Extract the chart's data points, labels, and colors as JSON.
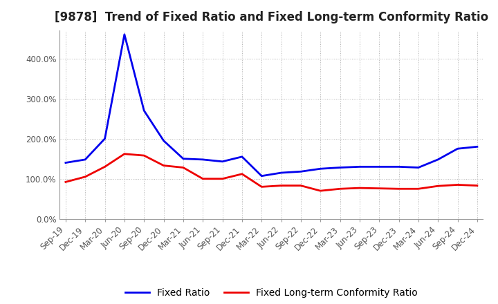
{
  "title": "[9878]  Trend of Fixed Ratio and Fixed Long-term Conformity Ratio",
  "x_labels": [
    "Sep-19",
    "Dec-19",
    "Mar-20",
    "Jun-20",
    "Sep-20",
    "Dec-20",
    "Mar-21",
    "Jun-21",
    "Sep-21",
    "Dec-21",
    "Mar-22",
    "Jun-22",
    "Sep-22",
    "Dec-22",
    "Mar-23",
    "Jun-23",
    "Sep-23",
    "Dec-23",
    "Mar-24",
    "Jun-24",
    "Sep-24",
    "Dec-24"
  ],
  "fixed_ratio": [
    140,
    148,
    200,
    460,
    270,
    195,
    150,
    148,
    143,
    155,
    107,
    115,
    118,
    125,
    128,
    130,
    130,
    130,
    128,
    148,
    175,
    180
  ],
  "fixed_lt_ratio": [
    92,
    105,
    130,
    162,
    158,
    133,
    128,
    100,
    100,
    112,
    80,
    83,
    83,
    70,
    75,
    77,
    76,
    75,
    75,
    82,
    85,
    83
  ],
  "ylim": [
    0,
    470
  ],
  "yticks": [
    0,
    100,
    200,
    300,
    400
  ],
  "ytick_labels": [
    "0.0%",
    "100.0%",
    "200.0%",
    "300.0%",
    "400.0%"
  ],
  "line_color_fixed": "#0000EE",
  "line_color_lt": "#EE0000",
  "bg_color": "#FFFFFF",
  "grid_color": "#AAAAAA",
  "legend_fixed": "Fixed Ratio",
  "legend_lt": "Fixed Long-term Conformity Ratio",
  "title_fontsize": 12,
  "tick_fontsize": 8.5,
  "legend_fontsize": 10
}
